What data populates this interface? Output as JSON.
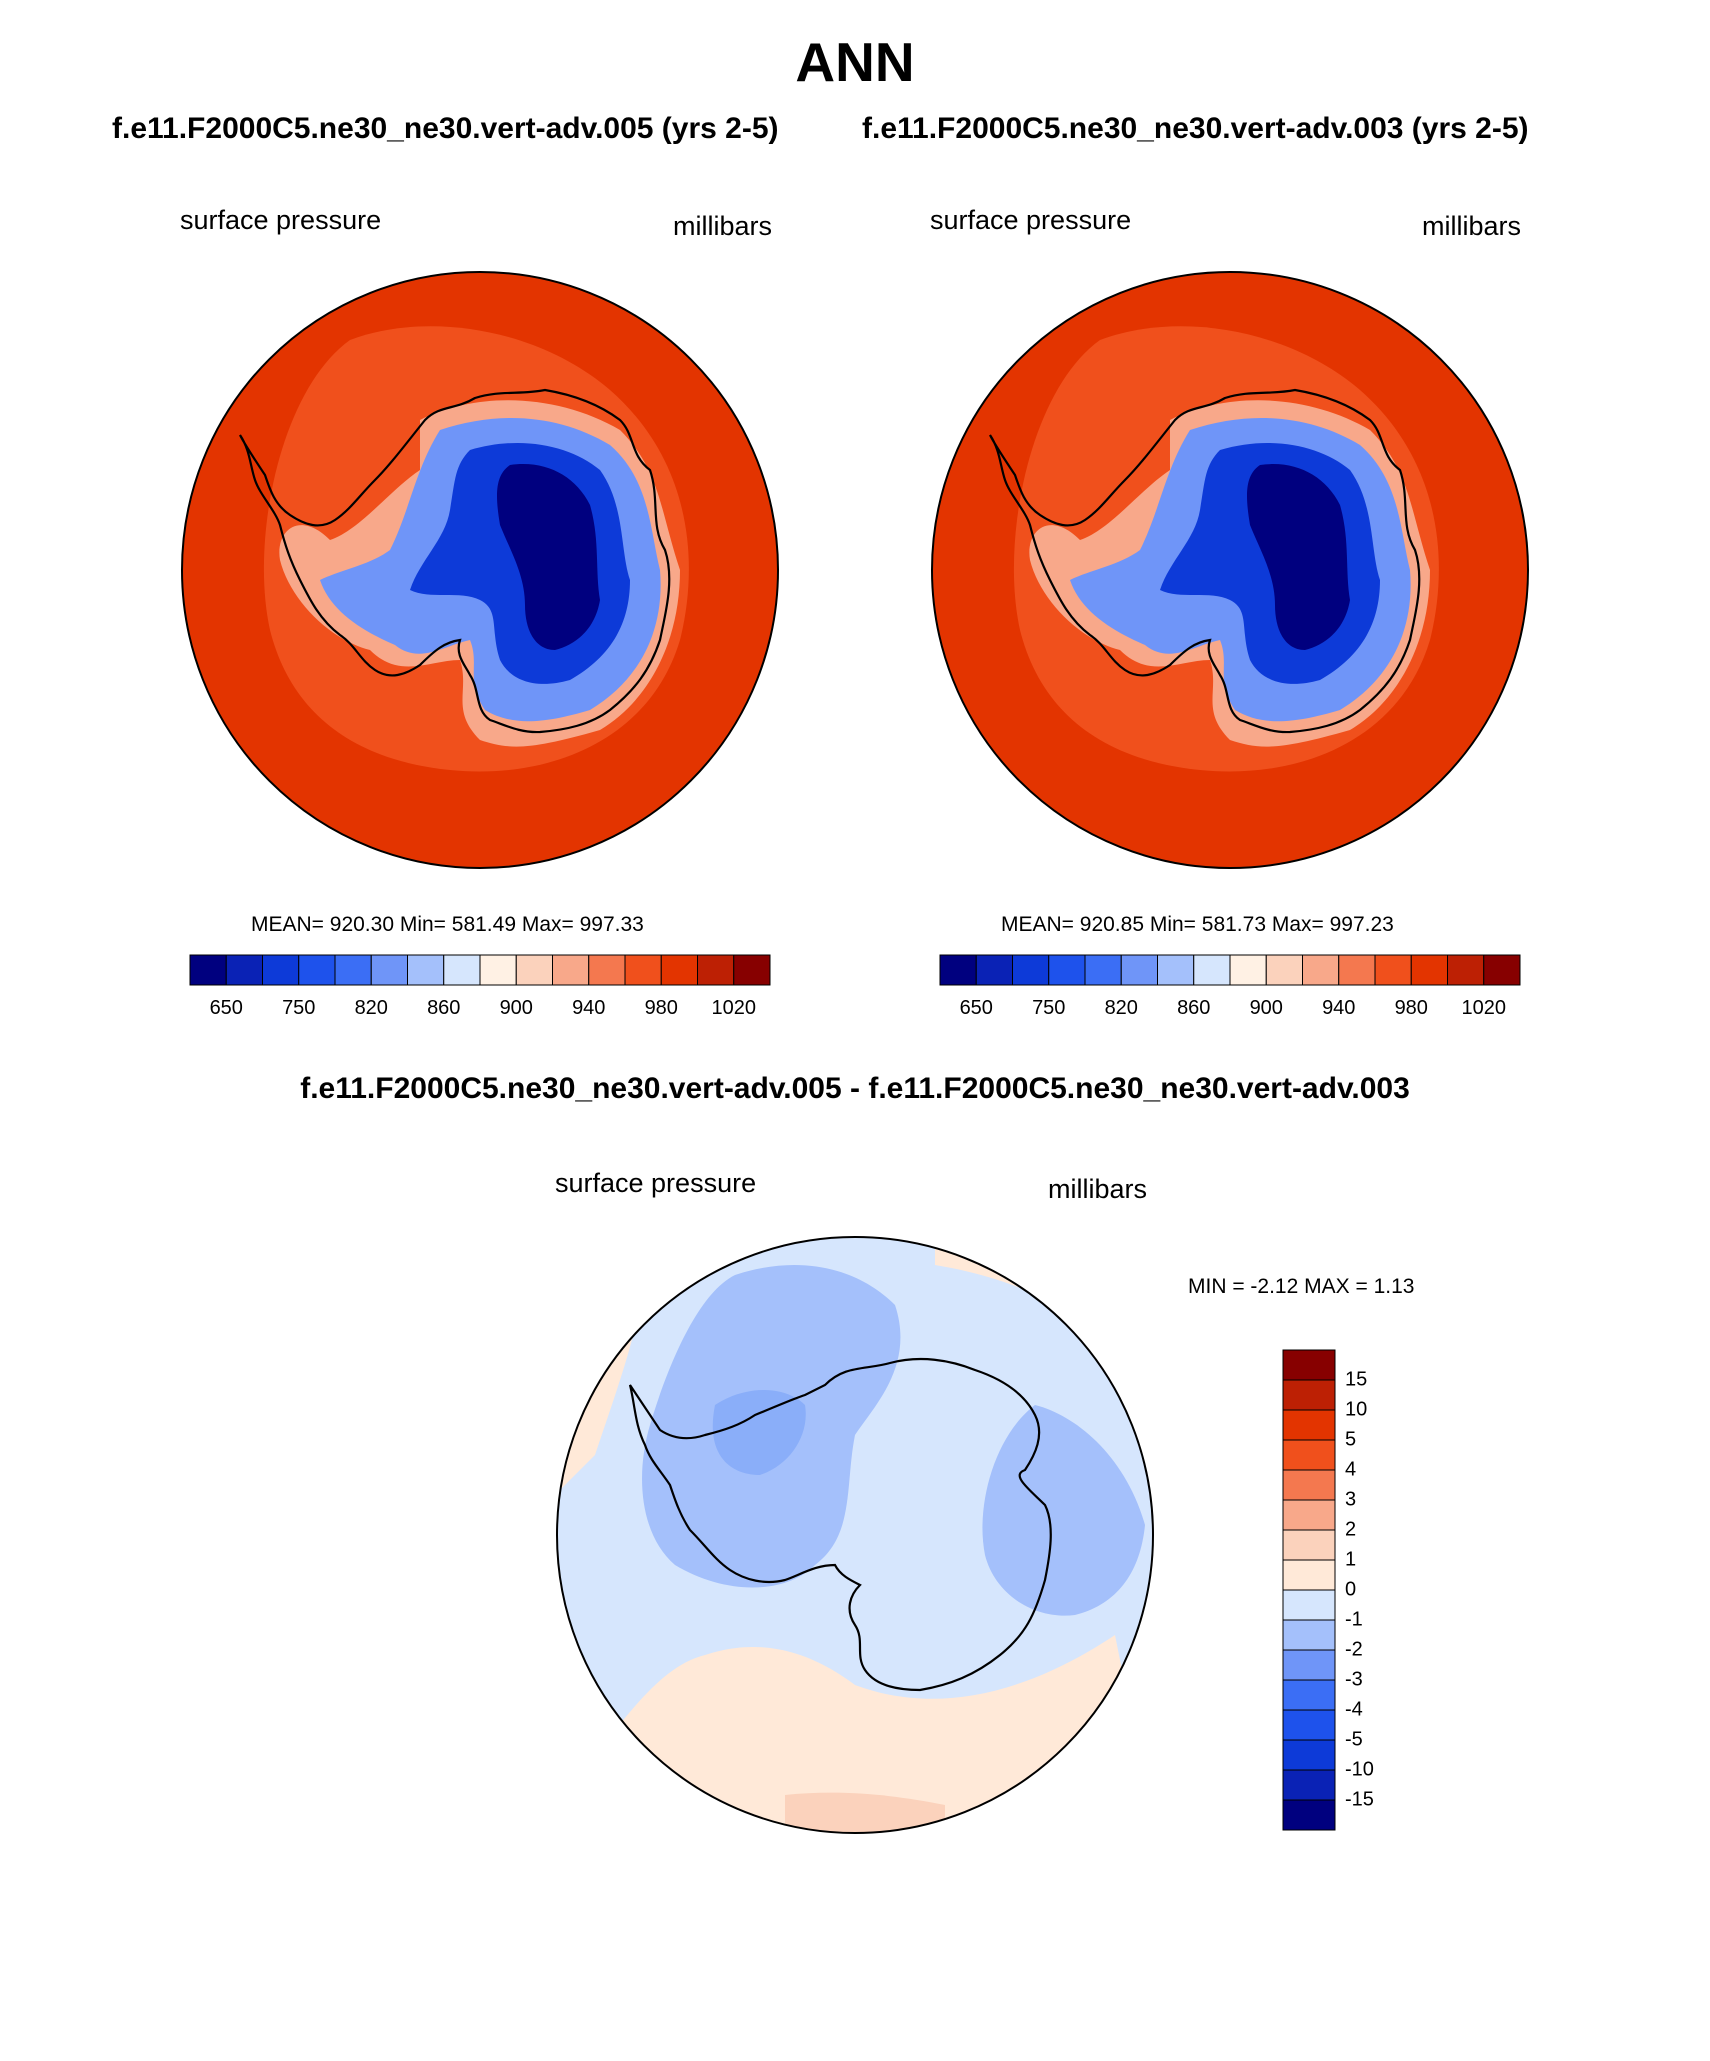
{
  "title": "ANN",
  "colors": {
    "abs_levels": [
      "#00007f",
      "#0a22b5",
      "#0d3ad8",
      "#1e52ec",
      "#3b6ef5",
      "#6f95f8",
      "#a4c0fb",
      "#d6e6fd",
      "#fff1e4",
      "#fbd2bc",
      "#f8a88a",
      "#f4784f",
      "#f0501c",
      "#e33400",
      "#bd2004",
      "#870000"
    ],
    "diff_levels": [
      "#870000",
      "#bd2004",
      "#e33400",
      "#f0501c",
      "#f4784f",
      "#f8a88a",
      "#fbd2bc",
      "#ffe9d8",
      "#d6e6fd",
      "#a4c0fb",
      "#6f95f8",
      "#3b6ef5",
      "#1e52ec",
      "#0d3ad8",
      "#0a22b5",
      "#00007f"
    ],
    "outer_ocean": "#e33400",
    "mid_ocean": "#f0501c",
    "coast_band": "#f8a88a",
    "diff_base": "#d6e6fd",
    "diff_neg2": "#a4c0fb",
    "diff_neg3": "#8aaef9",
    "diff_pos1": "#ffe9d8",
    "diff_pos2": "#fbd2bc"
  },
  "panels": [
    {
      "run_title": "f.e11.F2000C5.ne30_ne30.vert-adv.005 (yrs 2-5)",
      "left_label": "surface pressure",
      "right_label": "millibars",
      "stats": "MEAN= 920.30  Min= 581.49  Max= 997.33",
      "colorbar_ticks": [
        "650",
        "750",
        "820",
        "860",
        "900",
        "940",
        "980",
        "1020"
      ]
    },
    {
      "run_title": "f.e11.F2000C5.ne30_ne30.vert-adv.003 (yrs 2-5)",
      "left_label": "surface pressure",
      "right_label": "millibars",
      "stats": "MEAN= 920.85  Min= 581.73  Max= 997.23",
      "colorbar_ticks": [
        "650",
        "750",
        "820",
        "860",
        "900",
        "940",
        "980",
        "1020"
      ]
    }
  ],
  "difference": {
    "title": "f.e11.F2000C5.ne30_ne30.vert-adv.005 - f.e11.F2000C5.ne30_ne30.vert-adv.003",
    "left_label": "surface pressure",
    "right_label": "millibars",
    "stats": "MIN =  -2.12 MAX =   1.13",
    "colorbar_ticks": [
      "15",
      "10",
      "5",
      "4",
      "3",
      "2",
      "1",
      "0",
      "-1",
      "-2",
      "-3",
      "-4",
      "-5",
      "-10",
      "-15"
    ]
  }
}
